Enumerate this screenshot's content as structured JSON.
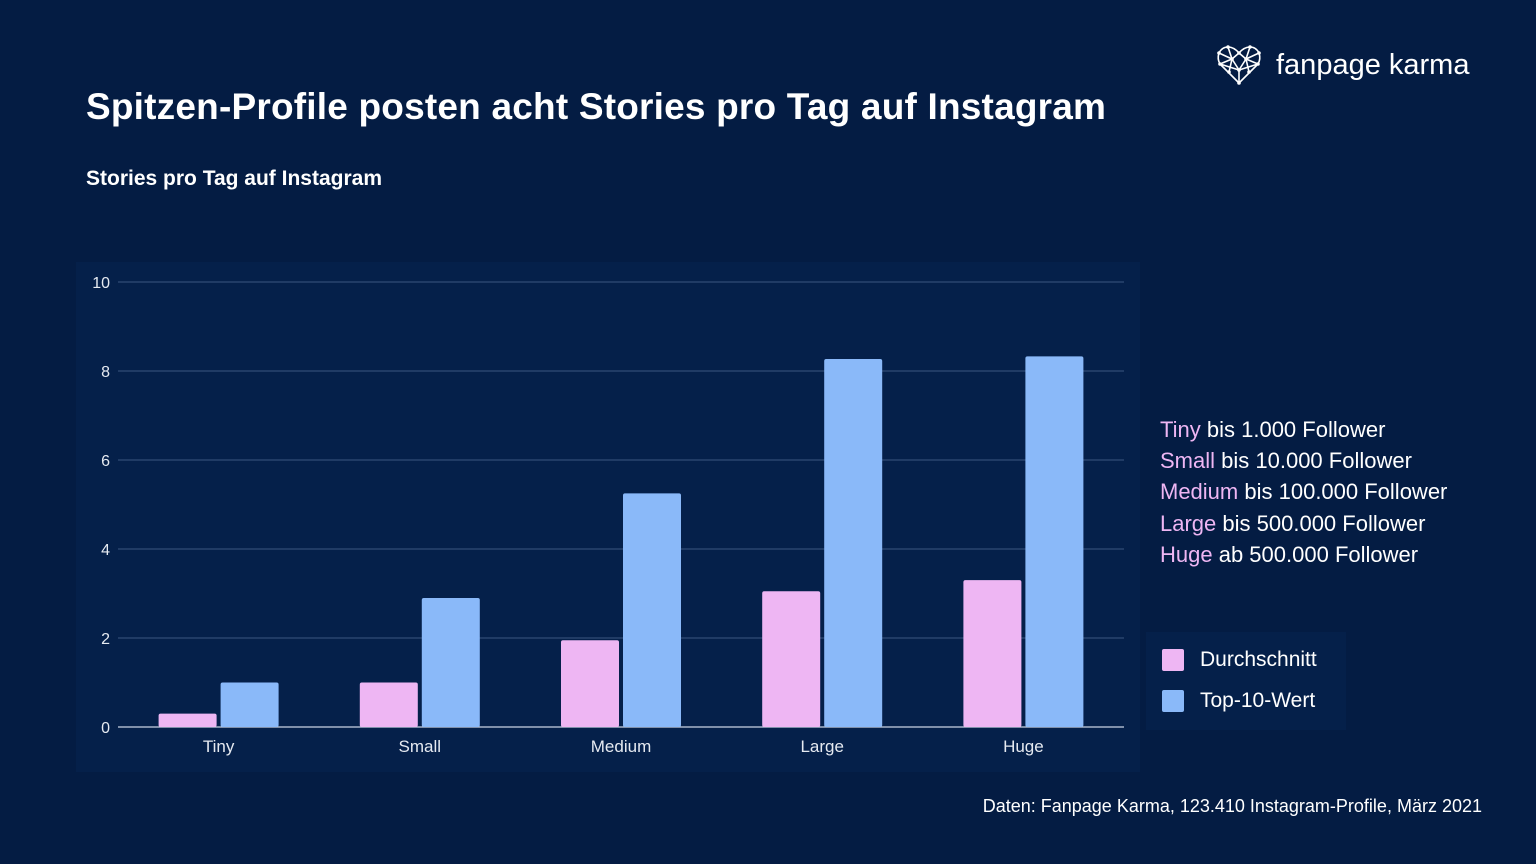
{
  "title": "Spitzen-Profile posten acht Stories pro Tag auf Instagram",
  "subtitle": "Stories pro Tag auf Instagram",
  "brand": {
    "name": "fanpage karma",
    "logo_icon": "heart-network-icon"
  },
  "colors": {
    "background": "#041c43",
    "durchschnitt": "#eeb6f3",
    "top10": "#8ab9f9"
  },
  "chart_data": {
    "type": "bar",
    "categories": [
      "Tiny",
      "Small",
      "Medium",
      "Large",
      "Huge"
    ],
    "series": [
      {
        "name": "Durchschnitt",
        "color": "#eeb6f3",
        "values": [
          0.3,
          1.0,
          1.95,
          3.05,
          3.3
        ]
      },
      {
        "name": "Top-10-Wert",
        "color": "#8ab9f9",
        "values": [
          1.0,
          2.9,
          5.25,
          8.27,
          8.33
        ]
      }
    ],
    "ylim": [
      0,
      10
    ],
    "yticks": [
      "0",
      "2",
      "4",
      "6",
      "8",
      "10"
    ],
    "grid": true,
    "legend_position": "right"
  },
  "info": [
    {
      "name": "Tiny",
      "desc": "bis 1.000 Follower"
    },
    {
      "name": "Small",
      "desc": "bis 10.000 Follower"
    },
    {
      "name": "Medium",
      "desc": "bis 100.000 Follower"
    },
    {
      "name": "Large",
      "desc": "bis 500.000 Follower"
    },
    {
      "name": "Huge",
      "desc": "ab 500.000 Follower"
    }
  ],
  "legend": [
    {
      "label": "Durchschnitt",
      "color": "#eeb6f3"
    },
    {
      "label": "Top-10-Wert",
      "color": "#8ab9f9"
    }
  ],
  "source": "Daten: Fanpage Karma, 123.410 Instagram-Profile, März 2021"
}
